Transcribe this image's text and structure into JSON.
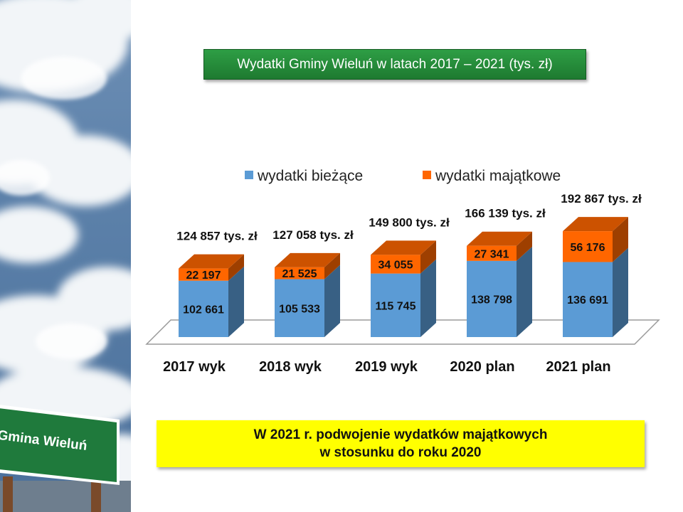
{
  "title": "Wydatki Gminy Wieluń w latach 2017 – 2021 (tys. zł)",
  "sign_text": "Gmina Wieluń",
  "note": {
    "line1": "W 2021 r. podwojenie wydatków majątkowych",
    "line2": "w stosunku do roku 2020"
  },
  "colors": {
    "bieżące": "#5b9bd5",
    "majątkowe": "#ff6600"
  },
  "chart_data": {
    "type": "bar",
    "stacked": true,
    "three_d": true,
    "categories": [
      "2017 wyk",
      "2018 wyk",
      "2019 wyk",
      "2020 plan",
      "2021 plan"
    ],
    "series": [
      {
        "name": "wydatki bieżące",
        "values": [
          102661,
          105533,
          115745,
          138798,
          136691
        ]
      },
      {
        "name": "wydatki majątkowe",
        "values": [
          22197,
          21525,
          34055,
          27341,
          56176
        ]
      }
    ],
    "value_labels": {
      "wydatki bieżące": [
        "102 661",
        "105 533",
        "115 745",
        "138 798",
        "136 691"
      ],
      "wydatki majątkowe": [
        "22 197",
        "21 525",
        "34 055",
        "27 341",
        "56 176"
      ]
    },
    "total_labels": [
      "124 857 tys. zł",
      "127 058 tys. zł",
      "149 800 tys. zł",
      "166 139 tys. zł",
      "192 867 tys. zł"
    ],
    "legend_position": "top",
    "grid": false,
    "title": "",
    "xlabel": "",
    "ylabel": "",
    "ylim": [
      0,
      200000
    ]
  }
}
